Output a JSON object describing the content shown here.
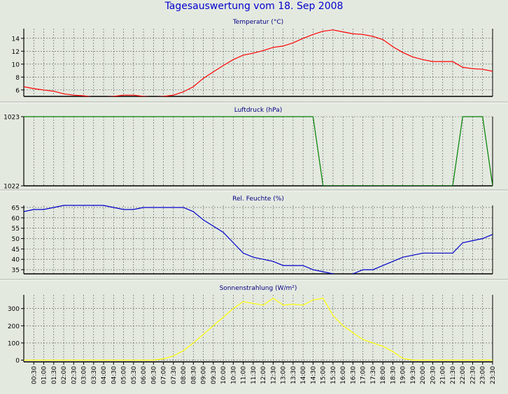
{
  "window": {
    "background": "#e4e9e0"
  },
  "title": "Tagesauswertung vom 18. Sep 2008",
  "time_labels": [
    "00:30",
    "01:00",
    "01:30",
    "02:00",
    "02:30",
    "03:00",
    "03:30",
    "04:00",
    "04:30",
    "05:00",
    "05:30",
    "06:00",
    "06:30",
    "07:00",
    "07:30",
    "08:00",
    "08:30",
    "09:00",
    "09:30",
    "10:00",
    "10:30",
    "11:00",
    "11:30",
    "12:00",
    "12:30",
    "13:00",
    "13:30",
    "14:00",
    "14:30",
    "15:00",
    "15:30",
    "16:00",
    "16:30",
    "17:00",
    "17:30",
    "18:00",
    "18:30",
    "19:00",
    "19:30",
    "20:00",
    "20:30",
    "21:00",
    "21:30",
    "22:00",
    "22:30",
    "23:00",
    "23:30"
  ],
  "chart_data": [
    {
      "type": "line",
      "title": "Temperatur (°C)",
      "color": "#ff0000",
      "x_range": [
        0.0,
        23.5
      ],
      "ylim": [
        5,
        15.5
      ],
      "yticks": [
        6,
        8,
        10,
        12,
        14
      ],
      "grid": true,
      "x": [
        0.0,
        0.5,
        1.0,
        1.5,
        2.0,
        2.5,
        3.0,
        3.5,
        4.0,
        4.5,
        5.0,
        5.5,
        6.0,
        6.5,
        7.0,
        7.5,
        8.0,
        8.5,
        9.0,
        9.5,
        10.0,
        10.5,
        11.0,
        11.5,
        12.0,
        12.5,
        13.0,
        13.5,
        14.0,
        14.5,
        15.0,
        15.5,
        16.0,
        16.5,
        17.0,
        17.5,
        18.0,
        18.5,
        19.0,
        19.5,
        20.0,
        20.5,
        21.0,
        21.5,
        22.0,
        22.5,
        23.0,
        23.5
      ],
      "y": [
        6.5,
        6.2,
        6.0,
        5.8,
        5.4,
        5.2,
        5.1,
        4.9,
        4.9,
        5.0,
        5.2,
        5.2,
        5.0,
        4.9,
        5.0,
        5.2,
        5.7,
        6.5,
        7.8,
        8.8,
        9.8,
        10.7,
        11.4,
        11.7,
        12.1,
        12.6,
        12.8,
        13.3,
        14.0,
        14.6,
        15.1,
        15.3,
        15.0,
        14.7,
        14.6,
        14.3,
        13.8,
        12.7,
        11.8,
        11.1,
        10.7,
        10.4,
        10.4,
        10.4,
        9.5,
        9.3,
        9.2,
        8.9
      ]
    },
    {
      "type": "line",
      "title": "Luftdruck (hPa)",
      "color": "#008000",
      "x_range": [
        0.0,
        23.5
      ],
      "ylim": [
        1022,
        1023
      ],
      "yticks": [
        1022,
        1023
      ],
      "grid": true,
      "x": [
        0.0,
        14.5,
        15.0,
        21.5,
        22.0,
        23.0,
        23.5
      ],
      "y": [
        1023,
        1023,
        1022,
        1022,
        1023,
        1023,
        1022
      ]
    },
    {
      "type": "line",
      "title": "Rel. Feuchte (%)",
      "color": "#0000cc",
      "x_range": [
        0.0,
        23.5
      ],
      "ylim": [
        33,
        66
      ],
      "yticks": [
        35,
        40,
        45,
        50,
        55,
        60,
        65
      ],
      "grid": true,
      "x": [
        0.0,
        0.5,
        1.0,
        1.5,
        2.0,
        2.5,
        3.0,
        3.5,
        4.0,
        4.5,
        5.0,
        5.5,
        6.0,
        6.5,
        7.0,
        7.5,
        8.0,
        8.5,
        9.0,
        9.5,
        10.0,
        10.5,
        11.0,
        11.5,
        12.0,
        12.5,
        13.0,
        13.5,
        14.0,
        14.5,
        15.0,
        15.5,
        16.0,
        16.5,
        17.0,
        17.5,
        18.0,
        18.5,
        19.0,
        19.5,
        20.0,
        20.5,
        21.0,
        21.5,
        22.0,
        22.5,
        23.0,
        23.5
      ],
      "y": [
        63,
        64,
        64,
        65,
        66,
        66,
        66,
        66,
        66,
        65,
        64,
        64,
        65,
        65,
        65,
        65,
        65,
        63,
        59,
        56,
        53,
        48,
        43,
        41,
        40,
        39,
        37,
        37,
        37,
        35,
        34,
        33,
        32,
        33,
        35,
        35,
        37,
        39,
        41,
        42,
        43,
        43,
        43,
        43,
        48,
        49,
        50,
        52
      ]
    },
    {
      "type": "line",
      "title": "Sonnenstrahlung (W/m²)",
      "color": "#ffff00",
      "x_range": [
        0.0,
        23.5
      ],
      "ylim": [
        -10,
        380
      ],
      "yticks": [
        0,
        100,
        200,
        300
      ],
      "grid": true,
      "x": [
        0.0,
        6.5,
        7.0,
        7.5,
        8.0,
        8.5,
        9.0,
        9.5,
        10.0,
        10.5,
        11.0,
        11.5,
        12.0,
        12.5,
        13.0,
        13.5,
        14.0,
        14.5,
        15.0,
        15.5,
        16.0,
        16.5,
        17.0,
        17.5,
        18.0,
        18.5,
        19.0,
        19.5,
        20.0,
        23.5
      ],
      "y": [
        0,
        0,
        8,
        25,
        55,
        100,
        150,
        200,
        250,
        300,
        340,
        330,
        320,
        360,
        320,
        325,
        320,
        350,
        360,
        260,
        200,
        160,
        120,
        100,
        80,
        50,
        10,
        0,
        0,
        0
      ]
    }
  ]
}
